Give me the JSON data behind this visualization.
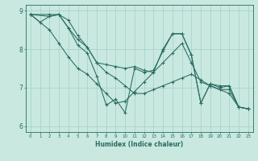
{
  "xlabel": "Humidex (Indice chaleur)",
  "bg_color": "#c8e8e0",
  "grid_color": "#aad4cc",
  "line_color": "#2a6b60",
  "xlim": [
    -0.5,
    23.5
  ],
  "ylim": [
    5.85,
    9.15
  ],
  "yticks": [
    6,
    7,
    8,
    9
  ],
  "xticks": [
    0,
    1,
    2,
    3,
    4,
    5,
    6,
    7,
    8,
    9,
    10,
    11,
    12,
    13,
    14,
    15,
    16,
    17,
    18,
    19,
    20,
    21,
    22,
    23
  ],
  "lines": [
    {
      "x": [
        0,
        1,
        2,
        3,
        4,
        5,
        6,
        7,
        8,
        9,
        10,
        11,
        12,
        13,
        14,
        15,
        16,
        17,
        18,
        19,
        20,
        21,
        22,
        23
      ],
      "y": [
        8.9,
        8.7,
        8.85,
        8.9,
        8.75,
        8.35,
        8.05,
        7.65,
        7.4,
        7.25,
        7.05,
        6.85,
        6.85,
        6.95,
        7.05,
        7.15,
        7.25,
        7.35,
        7.2,
        7.05,
        6.95,
        6.95,
        6.5,
        6.45
      ]
    },
    {
      "x": [
        0,
        2,
        3,
        4,
        5,
        6,
        7,
        8,
        9,
        10,
        11,
        12,
        13,
        14,
        15,
        16,
        17,
        18,
        19,
        20,
        21,
        22,
        23
      ],
      "y": [
        8.9,
        8.9,
        8.9,
        8.55,
        8.1,
        7.9,
        7.3,
        6.55,
        6.7,
        6.35,
        7.5,
        7.4,
        7.45,
        7.95,
        8.4,
        8.4,
        7.85,
        6.6,
        7.1,
        7.05,
        7.05,
        6.5,
        6.45
      ]
    },
    {
      "x": [
        0,
        2,
        3,
        4,
        5,
        6,
        7,
        8,
        9,
        10,
        11,
        12,
        13,
        14,
        15,
        16,
        17,
        18,
        19,
        20,
        21,
        22,
        23
      ],
      "y": [
        8.9,
        8.85,
        8.9,
        8.55,
        8.25,
        8.05,
        7.65,
        7.6,
        7.55,
        7.5,
        7.55,
        7.45,
        7.4,
        8.0,
        8.4,
        8.4,
        7.85,
        6.6,
        7.1,
        7.0,
        7.05,
        6.5,
        6.45
      ]
    },
    {
      "x": [
        0,
        2,
        3,
        4,
        5,
        6,
        7,
        8,
        9,
        10,
        11,
        12,
        13,
        14,
        15,
        16,
        17,
        18,
        19,
        20,
        21,
        22,
        23
      ],
      "y": [
        8.9,
        8.5,
        8.15,
        7.8,
        7.5,
        7.35,
        7.1,
        6.85,
        6.6,
        6.65,
        6.9,
        7.15,
        7.4,
        7.65,
        7.9,
        8.15,
        7.65,
        7.15,
        7.05,
        6.95,
        6.85,
        6.5,
        6.45
      ]
    }
  ]
}
